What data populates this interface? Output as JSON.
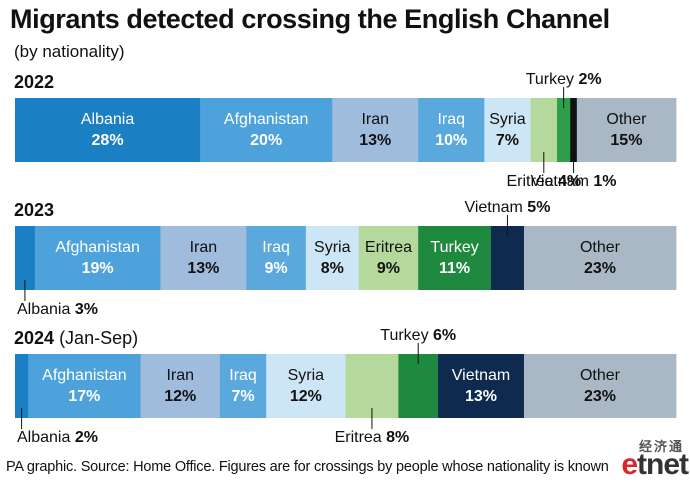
{
  "chart_data": {
    "type": "bar",
    "title": "Migrants detected crossing the English Channel",
    "subtitle": "(by nationality)",
    "unit": "%",
    "stacked": true,
    "orientation": "horizontal",
    "charts": [
      {
        "label": "2022",
        "label_sub": "",
        "segments": [
          {
            "name": "Albania",
            "value": 28,
            "value_label": "28%",
            "color": "#1b7fc4",
            "label_pos": "inside",
            "text_color": "#ffffff"
          },
          {
            "name": "Afghanistan",
            "value": 20,
            "value_label": "20%",
            "color": "#4ea2db",
            "label_pos": "inside",
            "text_color": "#ffffff"
          },
          {
            "name": "Iran",
            "value": 13,
            "value_label": "13%",
            "color": "#9fbcdc",
            "label_pos": "inside",
            "text_color": "#111111"
          },
          {
            "name": "Iraq",
            "value": 10,
            "value_label": "10%",
            "color": "#5aa8dc",
            "label_pos": "inside",
            "text_color": "#ffffff"
          },
          {
            "name": "Syria",
            "value": 7,
            "value_label": "7%",
            "color": "#cde6f6",
            "label_pos": "inside",
            "text_color": "#111111"
          },
          {
            "name": "Eritrea",
            "value": 4,
            "value_label": "4%",
            "color": "#b5d99c",
            "label_pos": "below",
            "text_color": "#111111"
          },
          {
            "name": "Turkey",
            "value": 2,
            "value_label": "2%",
            "color": "#2e9e4a",
            "label_pos": "above",
            "text_color": "#111111"
          },
          {
            "name": "Vietnam",
            "value": 1,
            "value_label": "1%",
            "color": "#111111",
            "label_pos": "below",
            "text_color": "#111111"
          },
          {
            "name": "Other",
            "value": 15,
            "value_label": "15%",
            "color": "#a9b8c4",
            "label_pos": "inside",
            "text_color": "#111111"
          }
        ]
      },
      {
        "label": "2023",
        "label_sub": "",
        "segments": [
          {
            "name": "Albania",
            "value": 3,
            "value_label": "3%",
            "color": "#1b7fc4",
            "label_pos": "below",
            "text_color": "#111111"
          },
          {
            "name": "Afghanistan",
            "value": 19,
            "value_label": "19%",
            "color": "#4ea2db",
            "label_pos": "inside",
            "text_color": "#ffffff"
          },
          {
            "name": "Iran",
            "value": 13,
            "value_label": "13%",
            "color": "#9fbcdc",
            "label_pos": "inside",
            "text_color": "#111111"
          },
          {
            "name": "Iraq",
            "value": 9,
            "value_label": "9%",
            "color": "#5aa8dc",
            "label_pos": "inside",
            "text_color": "#ffffff"
          },
          {
            "name": "Syria",
            "value": 8,
            "value_label": "8%",
            "color": "#cde6f6",
            "label_pos": "inside",
            "text_color": "#111111"
          },
          {
            "name": "Eritrea",
            "value": 9,
            "value_label": "9%",
            "color": "#b5d99c",
            "label_pos": "inside",
            "text_color": "#111111"
          },
          {
            "name": "Turkey",
            "value": 11,
            "value_label": "11%",
            "color": "#1f8a3f",
            "label_pos": "inside",
            "text_color": "#ffffff"
          },
          {
            "name": "Vietnam",
            "value": 5,
            "value_label": "5%",
            "color": "#0f2a4f",
            "label_pos": "above",
            "text_color": "#111111"
          },
          {
            "name": "Other",
            "value": 23,
            "value_label": "23%",
            "color": "#a9b8c4",
            "label_pos": "inside",
            "text_color": "#111111"
          }
        ]
      },
      {
        "label": "2024",
        "label_sub": "(Jan-Sep)",
        "segments": [
          {
            "name": "Albania",
            "value": 2,
            "value_label": "2%",
            "color": "#1b7fc4",
            "label_pos": "below",
            "text_color": "#111111"
          },
          {
            "name": "Afghanistan",
            "value": 17,
            "value_label": "17%",
            "color": "#4ea2db",
            "label_pos": "inside",
            "text_color": "#ffffff"
          },
          {
            "name": "Iran",
            "value": 12,
            "value_label": "12%",
            "color": "#9fbcdc",
            "label_pos": "inside",
            "text_color": "#111111"
          },
          {
            "name": "Iraq",
            "value": 7,
            "value_label": "7%",
            "color": "#5aa8dc",
            "label_pos": "inside",
            "text_color": "#ffffff"
          },
          {
            "name": "Syria",
            "value": 12,
            "value_label": "12%",
            "color": "#cde6f6",
            "label_pos": "inside",
            "text_color": "#111111"
          },
          {
            "name": "Eritrea",
            "value": 8,
            "value_label": "8%",
            "color": "#b5d99c",
            "label_pos": "below",
            "text_color": "#111111"
          },
          {
            "name": "Turkey",
            "value": 6,
            "value_label": "6%",
            "color": "#1f8a3f",
            "label_pos": "above",
            "text_color": "#111111"
          },
          {
            "name": "Vietnam",
            "value": 13,
            "value_label": "13%",
            "color": "#0f2a4f",
            "label_pos": "inside",
            "text_color": "#ffffff"
          },
          {
            "name": "Other",
            "value": 23,
            "value_label": "23%",
            "color": "#a9b8c4",
            "label_pos": "inside",
            "text_color": "#111111"
          }
        ]
      }
    ]
  },
  "footnote": "PA graphic. Source: Home Office. Figures are for crossings by people whose nationality is known",
  "logo": {
    "cn": "经济通",
    "wordmark_e": "e",
    "wordmark_rest": "tnet"
  }
}
